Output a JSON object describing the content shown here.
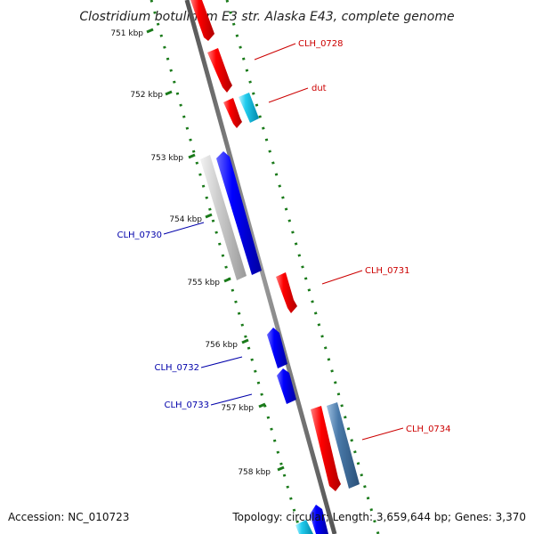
{
  "title": "Clostridium botulinum E3 str. Alaska E43, complete genome",
  "footer": {
    "accession": "Accession: NC_010723",
    "summary": "Topology: circular; Length: 3,659,644 bp; Genes: 3,370"
  },
  "colors": {
    "backbone": "#777777",
    "tick_ring": "#1a7a1a",
    "forward_gene": "#ff0000",
    "reverse_gene": "#0000ff",
    "forward_label": "#cc0000",
    "reverse_label": "#0000aa",
    "rna_gene": "#22ccee",
    "pseudo_gene": "#c8c8c8",
    "other_gene": "#4a7aaa"
  },
  "ticks": [
    {
      "kbp": 751,
      "label": "751 kbp"
    },
    {
      "kbp": 752,
      "label": "752 kbp"
    },
    {
      "kbp": 753,
      "label": "753 kbp"
    },
    {
      "kbp": 754,
      "label": "754 kbp"
    },
    {
      "kbp": 755,
      "label": "755 kbp"
    },
    {
      "kbp": 756,
      "label": "756 kbp"
    },
    {
      "kbp": 757,
      "label": "757 kbp"
    },
    {
      "kbp": 758,
      "label": "758 kbp"
    }
  ],
  "labels": {
    "clh_0728": "CLH_0728",
    "dut": "dut",
    "clh_0730": "CLH_0730",
    "clh_0731": "CLH_0731",
    "clh_0732": "CLH_0732",
    "clh_0733": "CLH_0733",
    "clh_0734": "CLH_0734"
  }
}
